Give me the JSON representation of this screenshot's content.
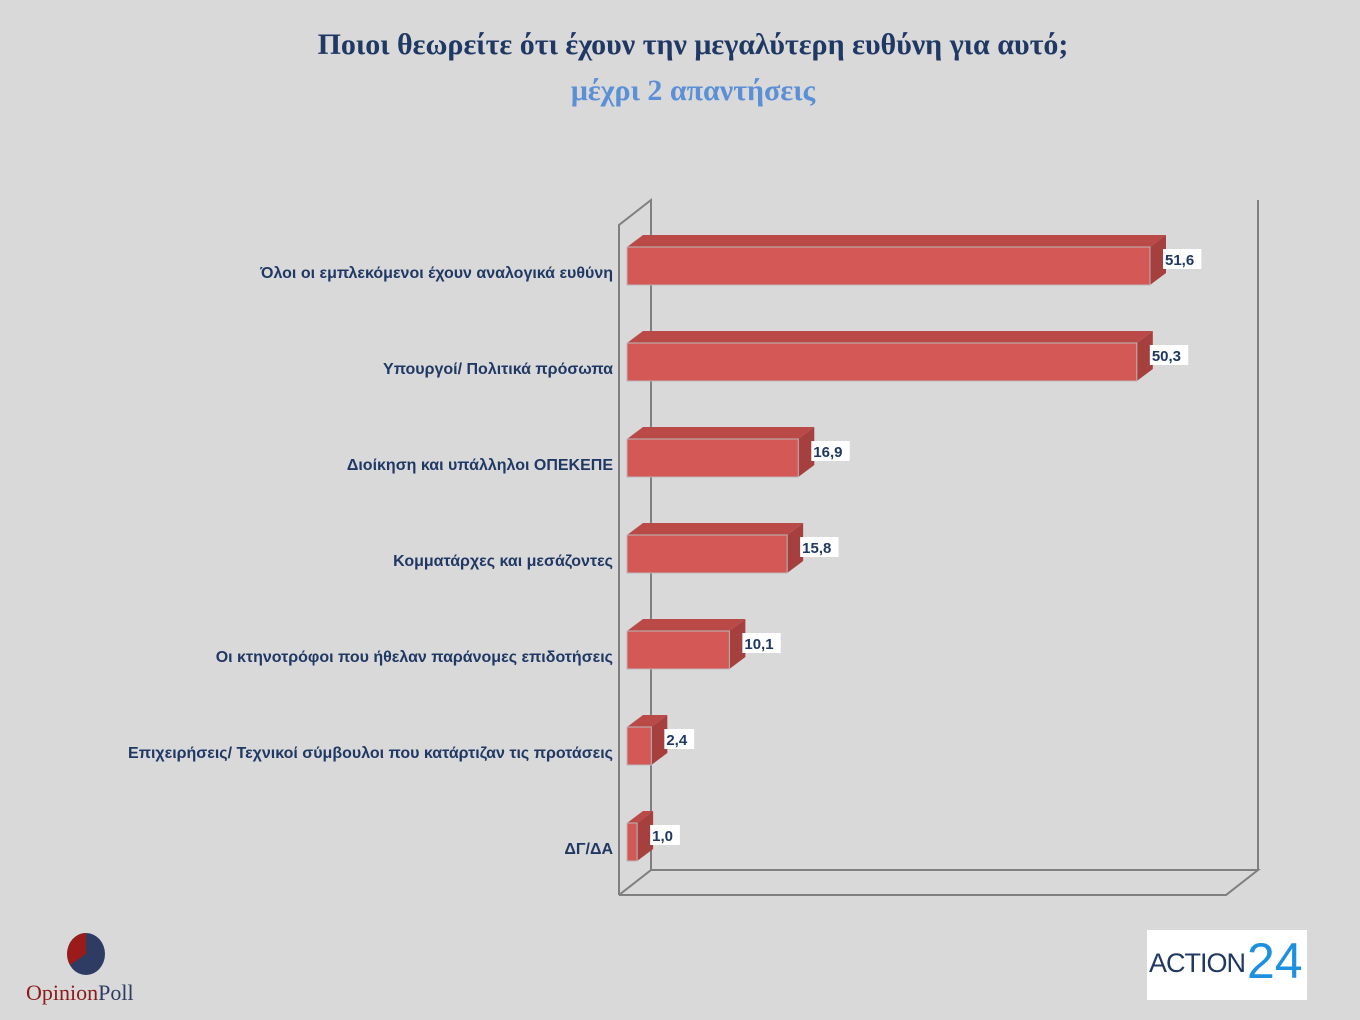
{
  "title": "Ποιοι θεωρείτε ότι έχουν την μεγαλύτερη ευθύνη για αυτό;",
  "subtitle": "μέχρι 2 απαντήσεις",
  "logos": {
    "left": {
      "part1": "Opinion",
      "part2": "Poll"
    },
    "right": {
      "part1": "ACTION",
      "part2": "24"
    }
  },
  "chart_data": {
    "type": "bar",
    "orientation": "horizontal",
    "style": "3d",
    "title": "Ποιοι θεωρείτε ότι έχουν την μεγαλύτερη ευθύνη για αυτό;",
    "subtitle": "μέχρι 2 απαντήσεις",
    "categories": [
      "Όλοι οι εμπλεκόμενοι έχουν αναλογικά ευθύνη",
      "Υπουργοί/ Πολιτικά πρόσωπα",
      "Διοίκηση και υπάλληλοι ΟΠΕΚΕΠΕ",
      "Κομματάρχες και μεσάζοντες",
      "Οι κτηνοτρόφοι που ήθελαν παράνομες επιδοτήσεις",
      "Επιχειρήσεις/ Τεχνικοί σύμβουλοι που κατάρτιζαν τις προτάσεις",
      "ΔΓ/ΔΑ"
    ],
    "values": [
      51.6,
      50.3,
      16.9,
      15.8,
      10.1,
      2.4,
      1.0
    ],
    "labels": [
      "51,6",
      "50,3",
      "16,9",
      "15,8",
      "10,1",
      "2,4",
      "1,0"
    ],
    "xlim": [
      0,
      60
    ],
    "grid": false,
    "bar_color": "#d45855"
  }
}
